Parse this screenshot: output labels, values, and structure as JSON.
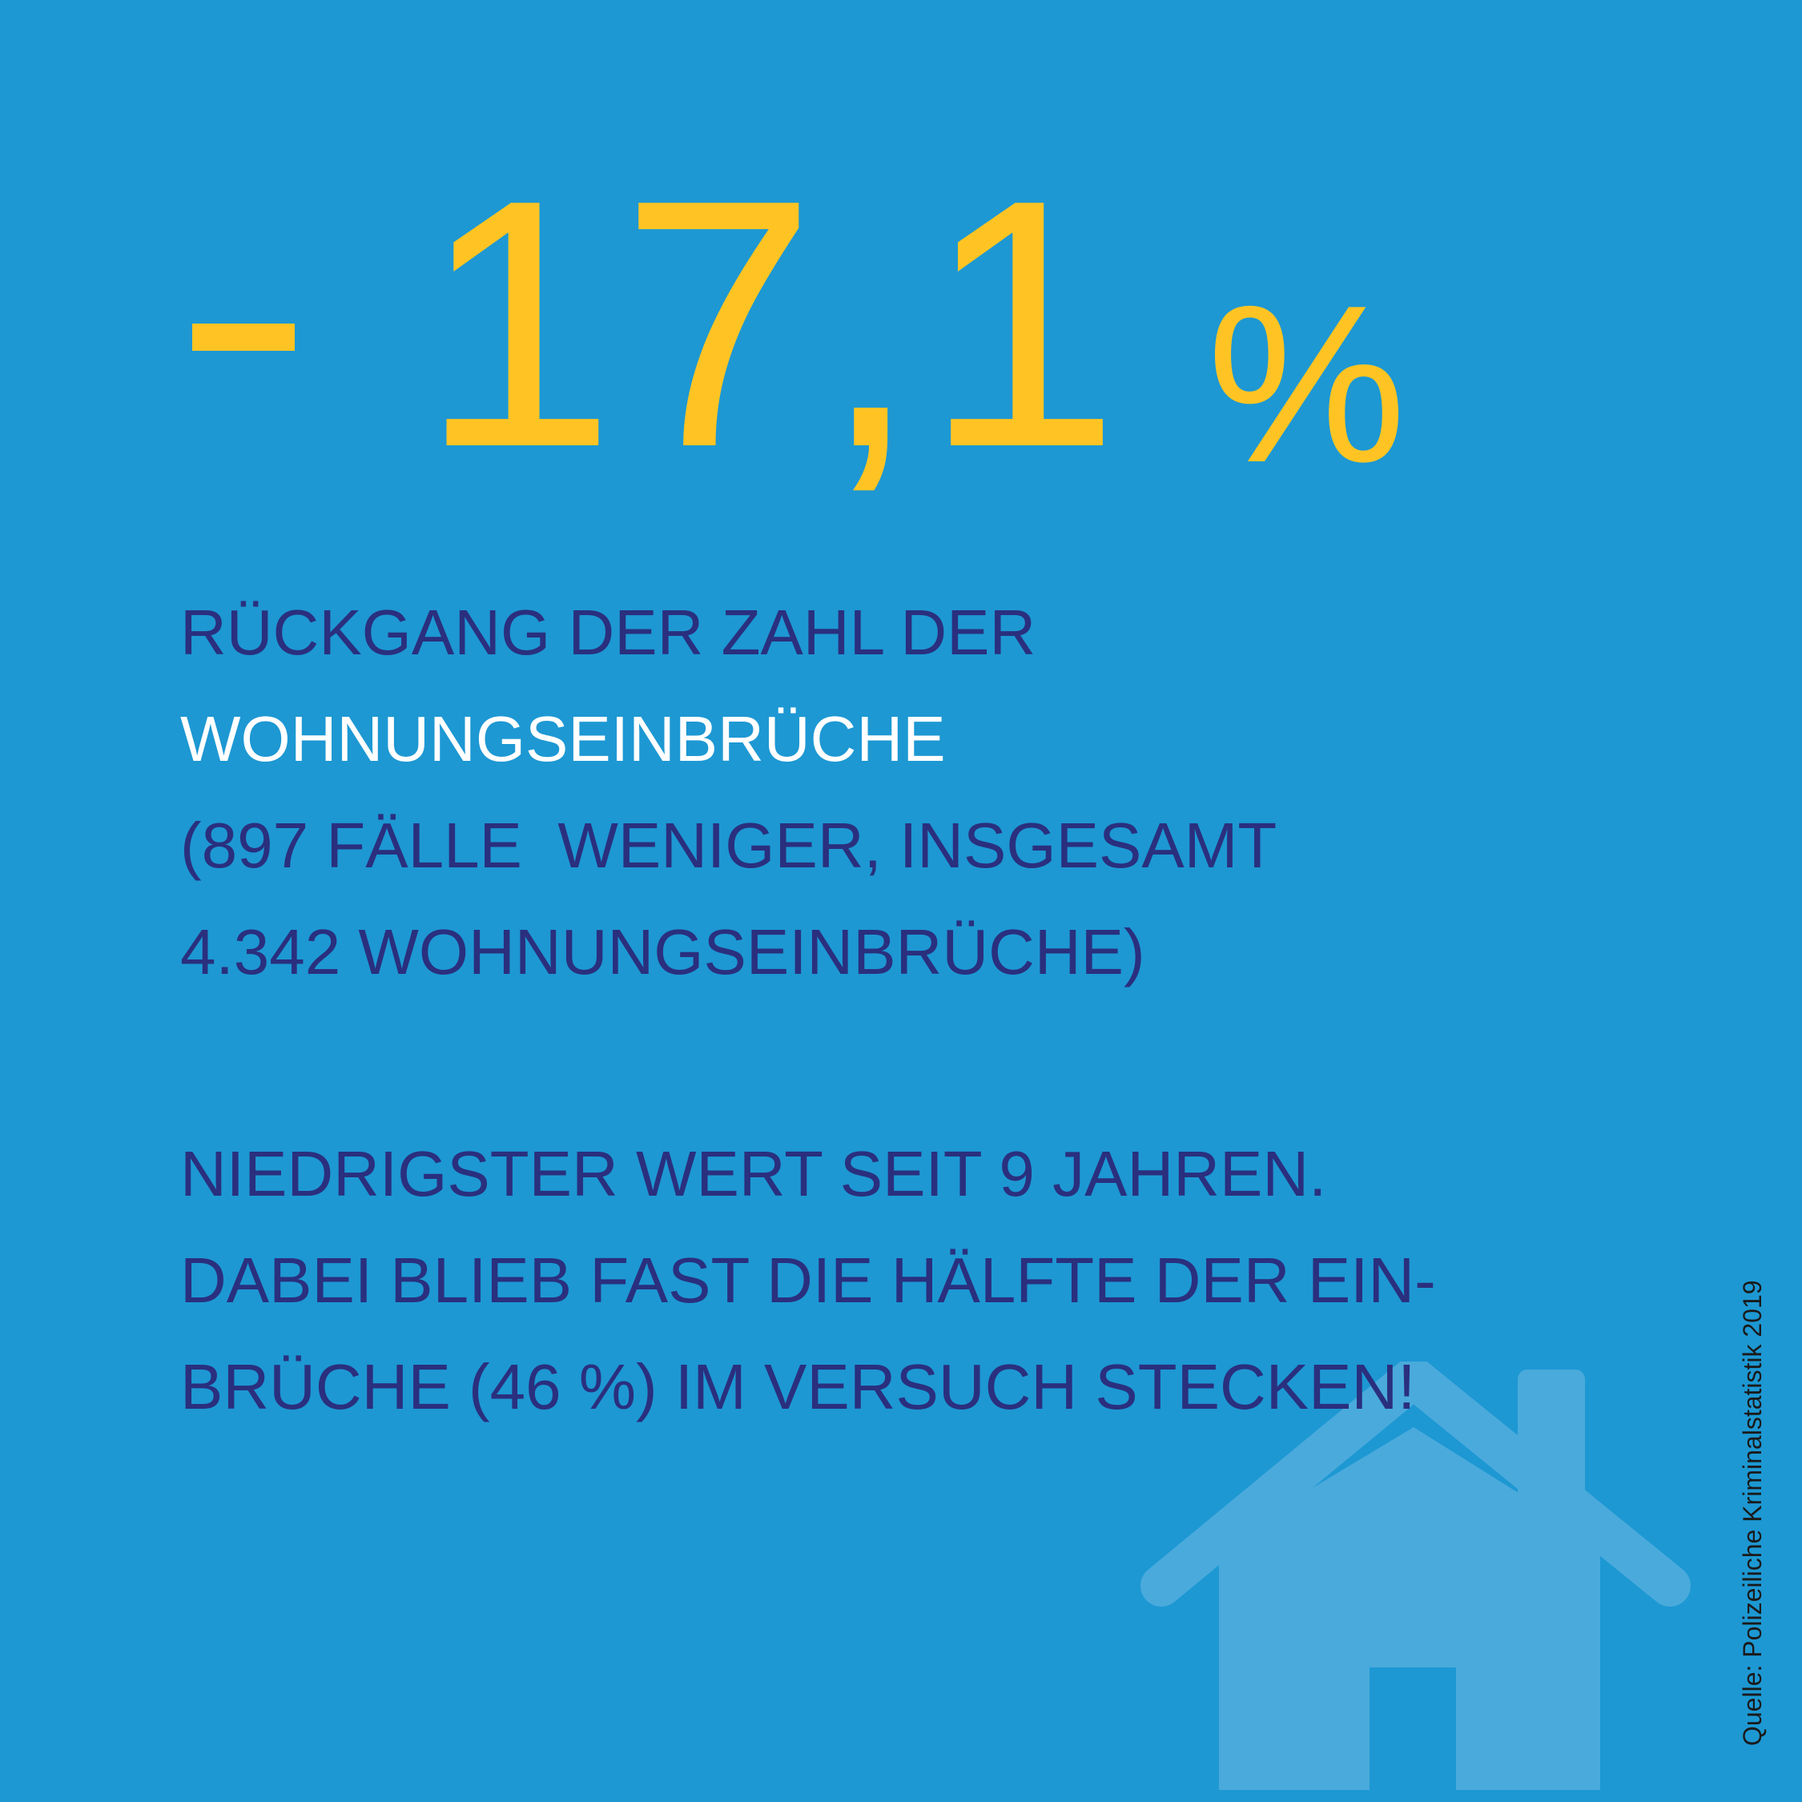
{
  "colors": {
    "background": "#1d98d3",
    "headline": "#ffc423",
    "text_dark": "#2a2f7e",
    "text_white": "#ffffff",
    "house": "#4aaadc",
    "source": "#1a1a1a"
  },
  "headline": {
    "number": "17,1",
    "percent": "%"
  },
  "block_one": {
    "line1": "RÜCKGANG DER ZAHL DER",
    "line2": "WOHNUNGSEINBRÜCHE",
    "line3": "(897 FÄLLE  WENIGER, INSGESAMT",
    "line4": "4.342 WOHNUNGSEINBRÜCHE)"
  },
  "block_two": {
    "line1": "NIEDRIGSTER WERT SEIT 9 JAHREN.",
    "line2": "DABEI BLIEB FAST DIE HÄLFTE DER EIN-",
    "line3": "BRÜCHE (46 %) IM VERSUCH STECKEN!"
  },
  "source": "Quelle: Polizeiliche Kriminalstatistik 2019",
  "icons": {
    "minus": "minus-icon",
    "house": "house-icon"
  }
}
